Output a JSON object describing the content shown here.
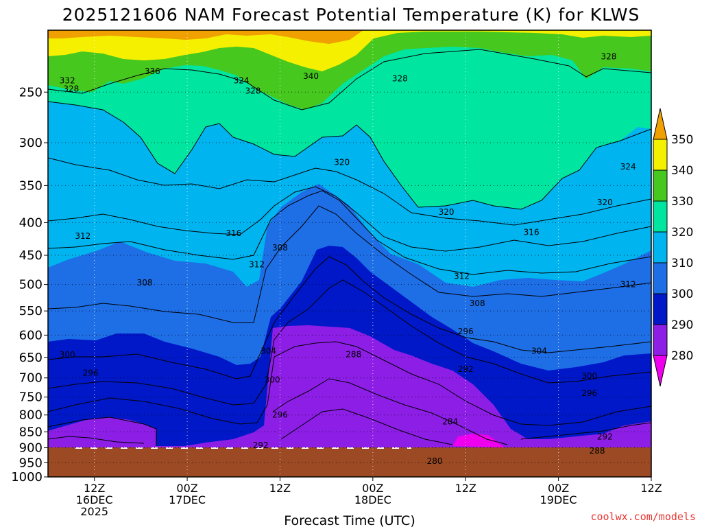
{
  "title": "2025121606 NAM Forecast Potential Temperature (K) for KLWS",
  "credit": "coolwx.com/models",
  "chart_data": {
    "type": "heatmap",
    "title": "2025121606 NAM Forecast Potential Temperature (K) for KLWS",
    "xlabel": "Forecast Time (UTC)",
    "ylabel": "",
    "y_scale": "log-pressure",
    "y_unit": "hPa",
    "ylim": [
      1000,
      200
    ],
    "xlim_hours": [
      6,
      84
    ],
    "grid": true,
    "y_ticks": [
      250,
      300,
      350,
      400,
      450,
      500,
      550,
      600,
      650,
      700,
      750,
      800,
      850,
      900,
      950,
      1000
    ],
    "x_ticks": [
      {
        "hour": 12,
        "lines": [
          "12Z",
          "16DEC",
          "2025"
        ]
      },
      {
        "hour": 24,
        "lines": [
          "00Z",
          "17DEC"
        ]
      },
      {
        "hour": 36,
        "lines": [
          "12Z"
        ]
      },
      {
        "hour": 48,
        "lines": [
          "00Z",
          "18DEC"
        ]
      },
      {
        "hour": 60,
        "lines": [
          "12Z"
        ]
      },
      {
        "hour": 72,
        "lines": [
          "00Z",
          "19DEC"
        ]
      },
      {
        "hour": 84,
        "lines": [
          "12Z"
        ]
      }
    ],
    "colorbar": {
      "levels": [
        280,
        290,
        300,
        310,
        320,
        330,
        340,
        350
      ],
      "colors": [
        "#ee00ee",
        "#8c1ee6",
        "#0018c8",
        "#1e6ee6",
        "#00b4f0",
        "#00e6a0",
        "#46c81e",
        "#f5f000",
        "#f0a000"
      ]
    },
    "surface_pressure": 950,
    "surface_color": "#9b4a23",
    "contour_labels": [
      {
        "hour": 19.5,
        "p": 232,
        "text": "336"
      },
      {
        "hour": 8.5,
        "p": 240,
        "text": "332"
      },
      {
        "hour": 9,
        "p": 247,
        "text": "328"
      },
      {
        "hour": 31,
        "p": 240,
        "text": "324"
      },
      {
        "hour": 40,
        "p": 236,
        "text": "340"
      },
      {
        "hour": 32.5,
        "p": 249,
        "text": "328"
      },
      {
        "hour": 51.5,
        "p": 238,
        "text": "328"
      },
      {
        "hour": 78.5,
        "p": 220,
        "text": "328"
      },
      {
        "hour": 44,
        "p": 322,
        "text": "320"
      },
      {
        "hour": 81,
        "p": 327,
        "text": "324"
      },
      {
        "hour": 57.5,
        "p": 385,
        "text": "320"
      },
      {
        "hour": 78,
        "p": 372,
        "text": "320"
      },
      {
        "hour": 10.5,
        "p": 420,
        "text": "312"
      },
      {
        "hour": 30,
        "p": 416,
        "text": "316"
      },
      {
        "hour": 36,
        "p": 438,
        "text": "308"
      },
      {
        "hour": 68.5,
        "p": 414,
        "text": "316"
      },
      {
        "hour": 33,
        "p": 465,
        "text": "312"
      },
      {
        "hour": 59.5,
        "p": 485,
        "text": "312"
      },
      {
        "hour": 18.5,
        "p": 497,
        "text": "308"
      },
      {
        "hour": 61.5,
        "p": 535,
        "text": "308"
      },
      {
        "hour": 81,
        "p": 500,
        "text": "312"
      },
      {
        "hour": 60,
        "p": 592,
        "text": "296"
      },
      {
        "hour": 34.5,
        "p": 635,
        "text": "304"
      },
      {
        "hour": 69.5,
        "p": 635,
        "text": "304"
      },
      {
        "hour": 8.5,
        "p": 644,
        "text": "300"
      },
      {
        "hour": 45.5,
        "p": 643,
        "text": "288"
      },
      {
        "hour": 60,
        "p": 678,
        "text": "292"
      },
      {
        "hour": 11.5,
        "p": 688,
        "text": "296"
      },
      {
        "hour": 35,
        "p": 705,
        "text": "300"
      },
      {
        "hour": 76,
        "p": 695,
        "text": "300"
      },
      {
        "hour": 76,
        "p": 740,
        "text": "296"
      },
      {
        "hour": 36,
        "p": 800,
        "text": "296"
      },
      {
        "hour": 58,
        "p": 820,
        "text": "284"
      },
      {
        "hour": 33.5,
        "p": 893,
        "text": "292"
      },
      {
        "hour": 78,
        "p": 865,
        "text": "292"
      },
      {
        "hour": 77,
        "p": 910,
        "text": "288"
      },
      {
        "hour": 56,
        "p": 945,
        "text": "280"
      }
    ]
  }
}
